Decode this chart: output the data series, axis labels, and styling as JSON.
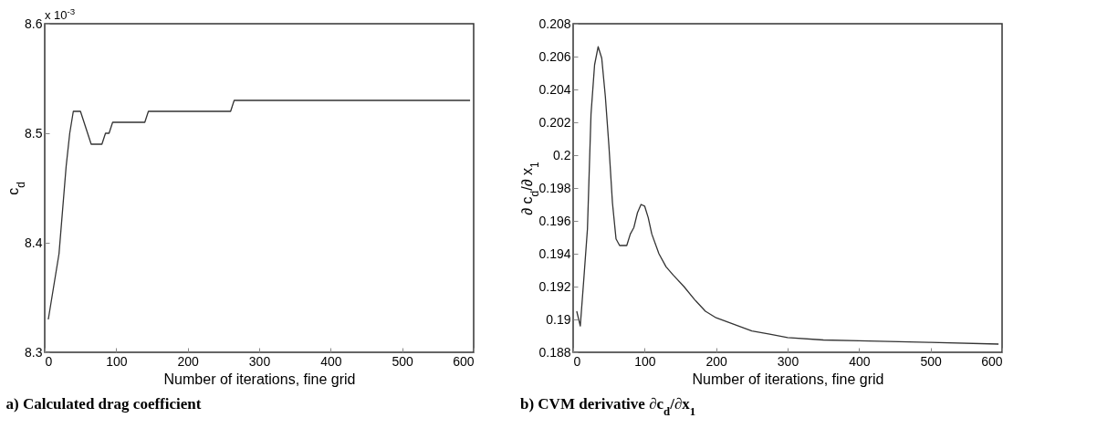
{
  "chart_data": [
    {
      "type": "line",
      "title": "a) Calculated drag coefficient",
      "xlabel": "Number of iterations, fine grid",
      "ylabel": "c$_{d}$",
      "annotations": [
        "x 10$^{-3}$"
      ],
      "x": [
        5,
        20,
        25,
        30,
        35,
        40,
        50,
        65,
        80,
        85,
        90,
        95,
        140,
        145,
        260,
        265,
        595
      ],
      "series": [
        {
          "color": "#333333",
          "values": [
            8.33,
            8.39,
            8.43,
            8.47,
            8.5,
            8.52,
            8.52,
            8.49,
            8.49,
            8.5,
            8.5,
            8.51,
            8.51,
            8.52,
            8.52,
            8.53,
            8.53
          ]
        }
      ],
      "xlim": [
        0,
        600
      ],
      "ylim": [
        8.3,
        8.6
      ],
      "xticks": [
        0,
        100,
        200,
        300,
        400,
        500,
        600
      ],
      "yticks": [
        8.3,
        8.4,
        8.5,
        8.6
      ]
    },
    {
      "type": "line",
      "title": "b) CVM derivative ∂c$_{d}$/∂x$_{1}$",
      "xlabel": "Number of iterations, fine grid",
      "ylabel": "∂ c$_{d}$/∂ x$_{1}$",
      "x": [
        5,
        10,
        15,
        20,
        25,
        30,
        35,
        40,
        45,
        50,
        55,
        60,
        65,
        75,
        80,
        85,
        90,
        95,
        100,
        105,
        110,
        120,
        130,
        140,
        155,
        170,
        185,
        200,
        225,
        250,
        275,
        300,
        350,
        400,
        500,
        595
      ],
      "series": [
        {
          "color": "#333333",
          "values": [
            0.1905,
            0.1896,
            0.1925,
            0.1955,
            0.2025,
            0.2055,
            0.2066,
            0.2059,
            0.2036,
            0.2006,
            0.1971,
            0.1949,
            0.1945,
            0.1945,
            0.1952,
            0.1956,
            0.1965,
            0.197,
            0.1969,
            0.1962,
            0.1952,
            0.194,
            0.1932,
            0.1927,
            0.192,
            0.1912,
            0.1905,
            0.1901,
            0.1897,
            0.1893,
            0.1891,
            0.1889,
            0.18875,
            0.1887,
            0.1886,
            0.1885
          ]
        }
      ],
      "xlim": [
        0,
        600
      ],
      "ylim": [
        0.188,
        0.208
      ],
      "xticks": [
        0,
        100,
        200,
        300,
        400,
        500,
        600
      ],
      "yticks": [
        0.188,
        0.19,
        0.192,
        0.194,
        0.196,
        0.198,
        0.2,
        0.202,
        0.204,
        0.206,
        0.208
      ]
    }
  ]
}
